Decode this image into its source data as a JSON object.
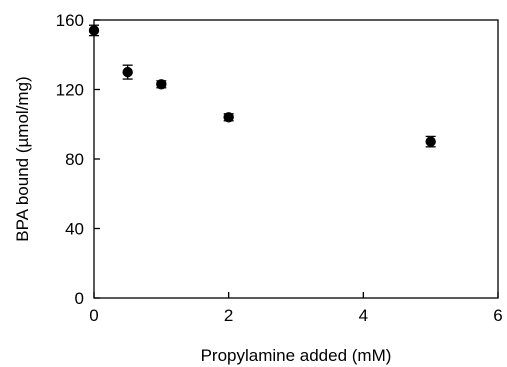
{
  "chart_data": {
    "type": "scatter",
    "xlabel": "Propylamine added (mM)",
    "ylabel": "BPA bound (µmol/mg)",
    "xlim": [
      0,
      6
    ],
    "ylim": [
      0,
      160
    ],
    "x_ticks": [
      0,
      2,
      4,
      6
    ],
    "y_ticks": [
      0,
      40,
      80,
      120,
      160
    ],
    "x_tick_labels": [
      "0",
      "2",
      "4",
      "6"
    ],
    "y_tick_labels": [
      "0",
      "40",
      "80",
      "120",
      "160"
    ],
    "grid": false,
    "series": [
      {
        "points": [
          {
            "x": 0,
            "y": 154,
            "err": 3
          },
          {
            "x": 0.5,
            "y": 130,
            "err": 4
          },
          {
            "x": 1,
            "y": 123,
            "err": 2
          },
          {
            "x": 2,
            "y": 104,
            "err": 2
          },
          {
            "x": 5,
            "y": 90,
            "err": 3
          }
        ]
      }
    ]
  }
}
